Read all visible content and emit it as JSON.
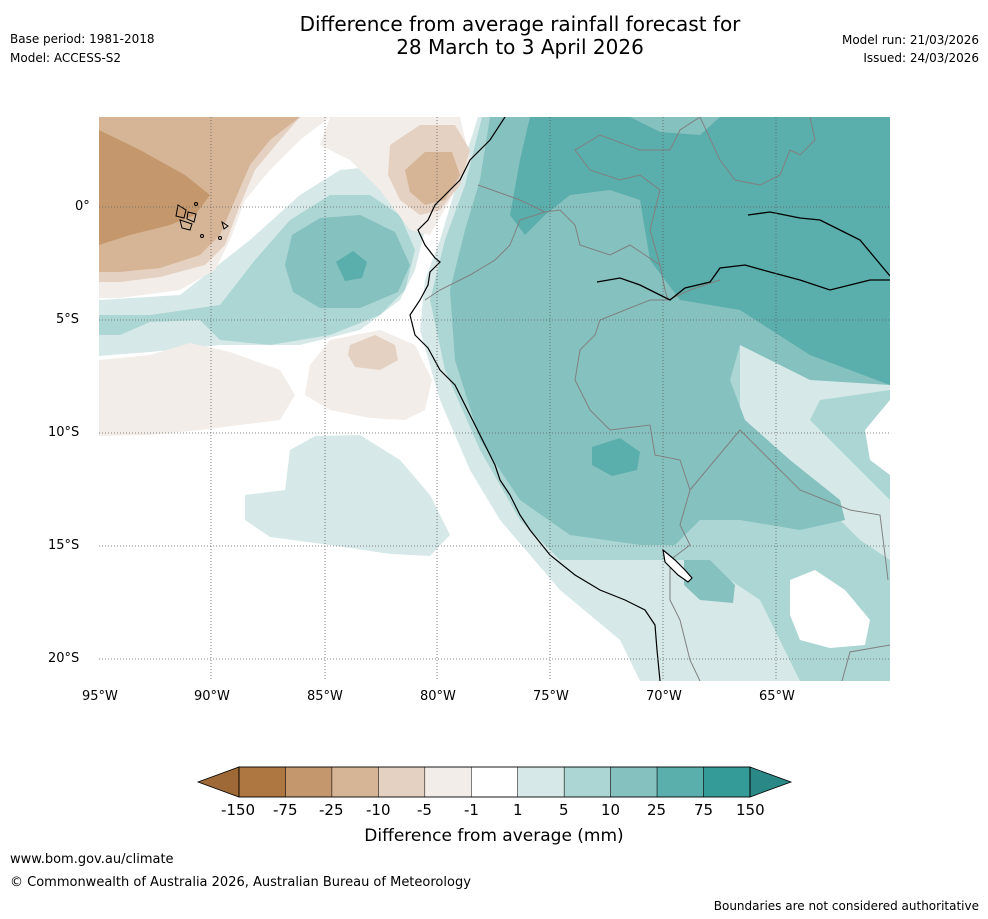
{
  "header": {
    "base_period": "Base period: 1981-2018",
    "model": "Model: ACCESS-S2",
    "title_line1": "Difference from average rainfall forecast for",
    "title_line2": "28 March to 3 April 2026",
    "model_run": "Model run: 21/03/2026",
    "issued": "Issued: 24/03/2026"
  },
  "map": {
    "lat_labels": [
      "0°",
      "5°S",
      "10°S",
      "15°S",
      "20°S"
    ],
    "lon_labels": [
      "95°W",
      "90°W",
      "85°W",
      "80°W",
      "75°W",
      "70°W",
      "65°W"
    ]
  },
  "legend": {
    "title": "Difference from average (mm)",
    "ticks": [
      "-150",
      "-75",
      "-25",
      "-10",
      "-5",
      "-1",
      "1",
      "5",
      "10",
      "25",
      "75",
      "150"
    ],
    "colors": {
      "below_min": "#9e6936",
      "bins": [
        "#ae7640",
        "#c4976c",
        "#d5b596",
        "#e5d1c1",
        "#f2ede8",
        "#ffffff",
        "#d6e9e8",
        "#acd6d4",
        "#85c1bf",
        "#5aaeac",
        "#359b98"
      ],
      "above_max": "#2a8886"
    }
  },
  "footer": {
    "url": "www.bom.gov.au/climate",
    "copyright": "© Commonwealth of Australia 2026, Australian Bureau of Meteorology",
    "disclaimer": "Boundaries are not considered authoritative"
  }
}
